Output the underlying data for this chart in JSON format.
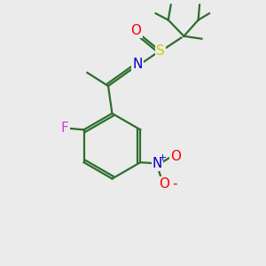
{
  "background_color": "#ebebeb",
  "bond_color": "#2d6e2d",
  "atom_colors": {
    "O": "#ff0000",
    "S": "#cccc00",
    "N_imine": "#0000cc",
    "N_nitro": "#0000cc",
    "F": "#cc44cc",
    "C": "#000000"
  },
  "figsize": [
    3.0,
    3.0
  ],
  "dpi": 100,
  "xlim": [
    0,
    10
  ],
  "ylim": [
    0,
    10
  ]
}
